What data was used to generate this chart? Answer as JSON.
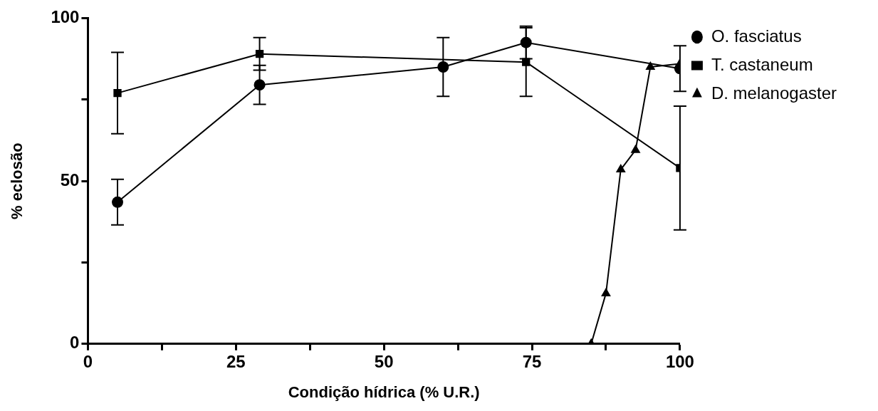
{
  "chart_data": {
    "type": "line",
    "xlabel": "Condição hídrica (% U.R.)",
    "ylabel": "% eclosão",
    "xlim": [
      0,
      100
    ],
    "xticks": [
      0,
      {
        "value": 12.5,
        "label": null
      },
      25,
      {
        "value": 37.5,
        "label": null
      },
      50,
      {
        "value": 62.5,
        "label": null
      },
      75,
      {
        "value": 87.5,
        "label": null
      },
      100
    ],
    "ylim": [
      0,
      100
    ],
    "yticks": [
      0,
      {
        "value": 25,
        "label": null
      },
      50,
      {
        "value": 75,
        "label": null
      },
      100
    ],
    "grid": false,
    "legend": "right",
    "series": [
      {
        "name": "O. fasciatus",
        "color": "#000000",
        "marker": "circle",
        "x": [
          5,
          29,
          60,
          74,
          100
        ],
        "values": [
          43.5,
          79.5,
          85,
          92.5,
          84.5
        ],
        "errors": [
          7,
          6,
          9,
          5,
          7
        ]
      },
      {
        "name": "T. castaneum",
        "color": "#000000",
        "marker": "square",
        "x": [
          5,
          29,
          74,
          100
        ],
        "values": [
          77,
          89,
          86.5,
          54
        ],
        "errors": [
          12.5,
          5,
          10.5,
          19
        ]
      },
      {
        "name": "D. melanogaster",
        "color": "#000000",
        "marker": "triangle",
        "x": [
          85,
          87.5,
          90,
          92.5,
          95,
          100
        ],
        "values": [
          0,
          15.5,
          53.5,
          59.5,
          85,
          86
        ]
      }
    ]
  }
}
